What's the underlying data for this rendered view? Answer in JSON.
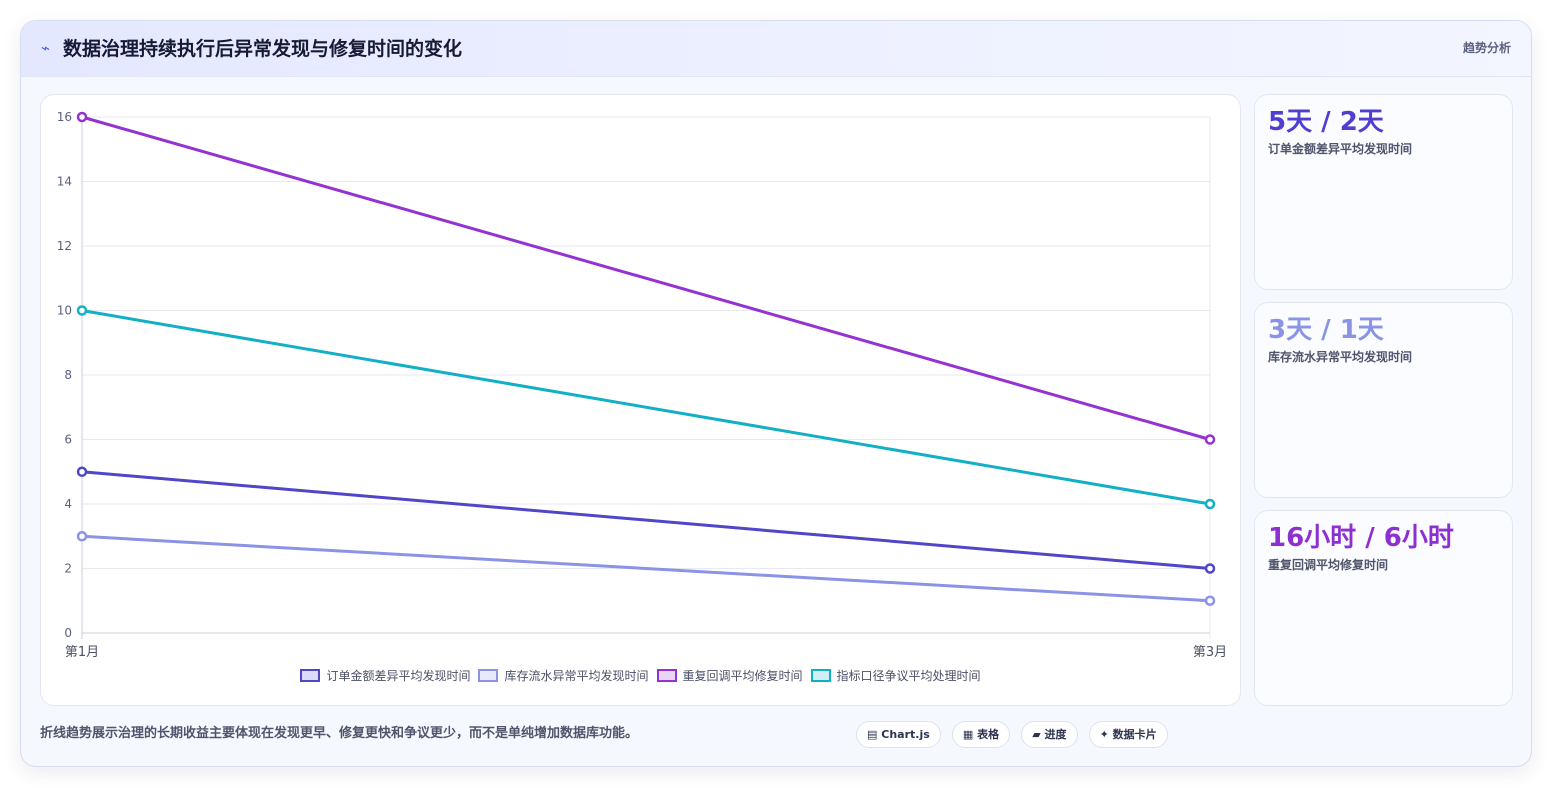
{
  "header": {
    "icon": "lightning-icon",
    "title": "数据治理持续执行后异常发现与修复时间的变化",
    "tag": "趋势分析"
  },
  "chart_data": {
    "type": "line",
    "x": [
      "第1月",
      "第3月"
    ],
    "ylim": [
      0,
      16
    ],
    "yticks": [
      0,
      2,
      4,
      6,
      8,
      10,
      12,
      14,
      16
    ],
    "grid": true,
    "legend": "bottom",
    "series": [
      {
        "name": "订单金额差异平均发现时间",
        "values": [
          5,
          2
        ],
        "color": "#4f46c8"
      },
      {
        "name": "库存流水异常平均发现时间",
        "values": [
          3,
          1
        ],
        "color": "#8a93e6"
      },
      {
        "name": "重复回调平均修复时间",
        "values": [
          16,
          6
        ],
        "color": "#9333d1"
      },
      {
        "name": "指标口径争议平均处理时间",
        "values": [
          10,
          4
        ],
        "color": "#12b0c4"
      }
    ]
  },
  "stats": [
    {
      "value": "5天 / 2天",
      "label": "订单金额差异平均发现时间",
      "color": "#4f3fd0"
    },
    {
      "value": "3天 / 1天",
      "label": "库存流水异常平均发现时间",
      "color": "#8a93e6"
    },
    {
      "value": "16小时 / 6小时",
      "label": "重复回调平均修复时间",
      "color": "#8e2fd0"
    }
  ],
  "footer": {
    "note": "折线趋势展示治理的长期收益主要体现在发现更早、修复更快和争议更少，而不是单纯增加数据库功能。",
    "pills": [
      {
        "icon": "▤",
        "label": "Chart.js"
      },
      {
        "icon": "▦",
        "label": "表格"
      },
      {
        "icon": "▰",
        "label": "进度"
      },
      {
        "icon": "✦",
        "label": "数据卡片"
      }
    ]
  }
}
